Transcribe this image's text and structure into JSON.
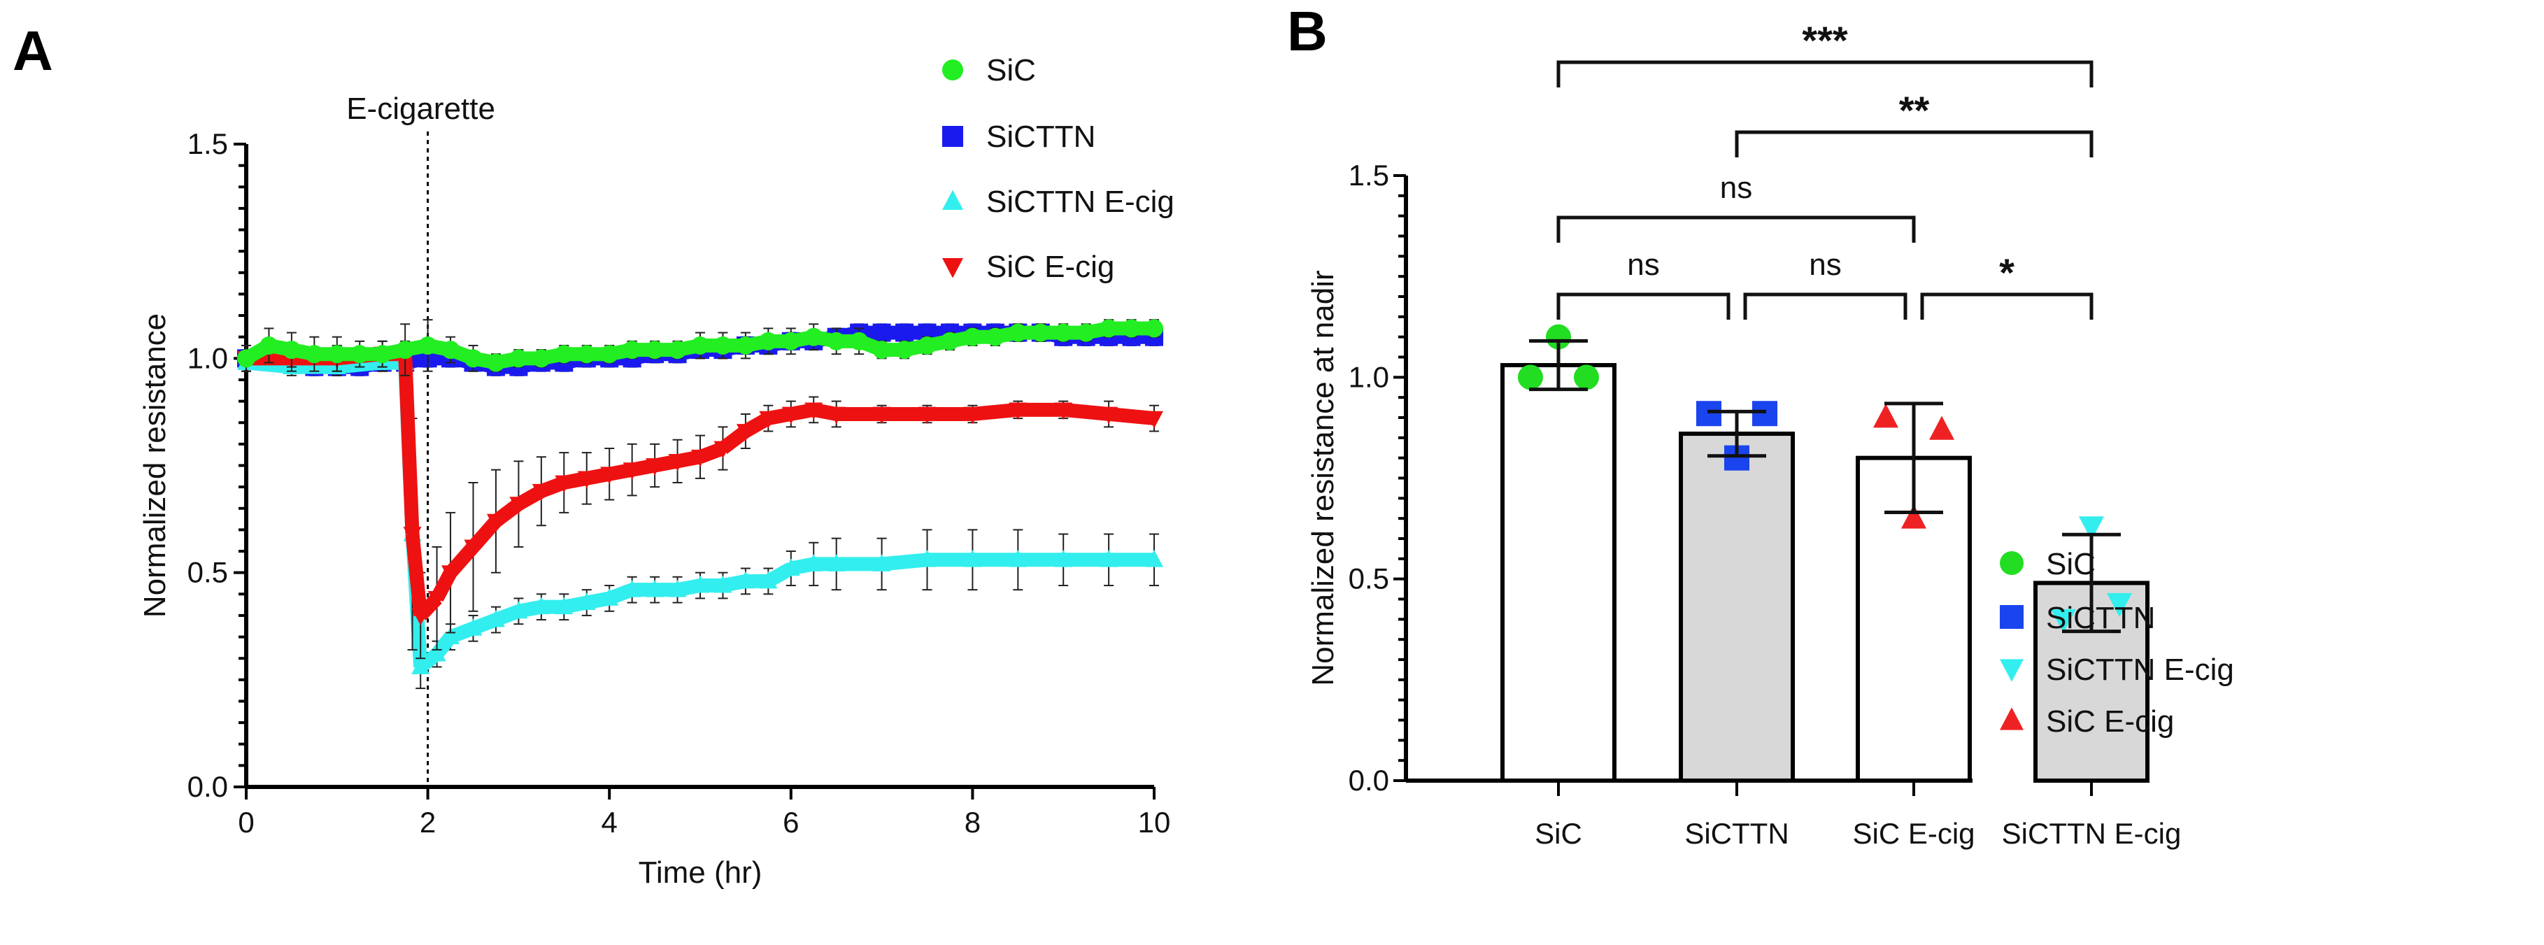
{
  "chart_data": [
    {
      "panel": "A",
      "type": "line",
      "xlabel": "Time (hr)",
      "ylabel": "Normalized resistance",
      "xlim": [
        0,
        10
      ],
      "ylim": [
        0,
        1.5
      ],
      "xticks": [
        "0",
        "2",
        "4",
        "6",
        "8",
        "10"
      ],
      "yticks": [
        "0.0",
        "0.5",
        "1.0",
        "1.5"
      ],
      "annotation": {
        "label": "E-cigarette",
        "x": 2
      },
      "legend_position": "top-right",
      "series": [
        {
          "name": "SiC",
          "marker": "circle",
          "color": "#22ee22",
          "x": [
            0,
            0.25,
            0.5,
            0.75,
            1,
            1.25,
            1.5,
            1.75,
            2,
            2.25,
            2.5,
            2.75,
            3,
            3.25,
            3.5,
            3.75,
            4,
            4.25,
            4.5,
            4.75,
            5,
            5.25,
            5.5,
            5.75,
            6,
            6.25,
            6.5,
            6.75,
            7,
            7.25,
            7.5,
            7.75,
            8,
            8.25,
            8.5,
            8.75,
            9,
            9.25,
            9.5,
            9.75,
            10
          ],
          "y": [
            1.0,
            1.03,
            1.02,
            1.01,
            1.01,
            1.01,
            1.01,
            1.02,
            1.03,
            1.02,
            1.0,
            0.99,
            1.0,
            1.0,
            1.01,
            1.01,
            1.01,
            1.02,
            1.02,
            1.02,
            1.03,
            1.03,
            1.03,
            1.04,
            1.04,
            1.05,
            1.04,
            1.04,
            1.02,
            1.02,
            1.03,
            1.04,
            1.05,
            1.05,
            1.06,
            1.06,
            1.06,
            1.06,
            1.07,
            1.07,
            1.07
          ],
          "err": [
            0.03,
            0.04,
            0.04,
            0.04,
            0.04,
            0.03,
            0.03,
            0.06,
            0.06,
            0.03,
            0.03,
            0.02,
            0.02,
            0.02,
            0.02,
            0.02,
            0.02,
            0.02,
            0.02,
            0.02,
            0.03,
            0.03,
            0.03,
            0.03,
            0.03,
            0.03,
            0.03,
            0.03,
            0.02,
            0.02,
            0.02,
            0.02,
            0.02,
            0.02,
            0.02,
            0.02,
            0.02,
            0.02,
            0.02,
            0.02,
            0.02
          ]
        },
        {
          "name": "SiCTTN",
          "marker": "square",
          "color": "#1a1aee",
          "x": [
            0,
            0.25,
            0.5,
            0.75,
            1,
            1.25,
            1.5,
            1.75,
            2,
            2.25,
            2.5,
            2.75,
            3,
            3.25,
            3.5,
            3.75,
            4,
            4.25,
            4.5,
            4.75,
            5,
            5.25,
            5.5,
            5.75,
            6,
            6.25,
            6.5,
            6.75,
            7,
            7.25,
            7.5,
            7.75,
            8,
            8.25,
            8.5,
            8.75,
            9,
            9.25,
            9.5,
            9.75,
            10
          ],
          "y": [
            1.0,
            1.0,
            0.99,
            0.98,
            0.98,
            0.98,
            0.99,
            0.99,
            1.0,
            1.0,
            0.99,
            0.98,
            0.98,
            0.99,
            0.99,
            1.0,
            1.0,
            1.0,
            1.01,
            1.01,
            1.02,
            1.02,
            1.03,
            1.03,
            1.04,
            1.04,
            1.05,
            1.06,
            1.06,
            1.06,
            1.06,
            1.06,
            1.06,
            1.06,
            1.06,
            1.06,
            1.05,
            1.05,
            1.05,
            1.05,
            1.05
          ],
          "err": [
            0.02,
            0.02,
            0.02,
            0.02,
            0.02,
            0.02,
            0.02,
            0.02,
            0.02,
            0.02,
            0.02,
            0.02,
            0.02,
            0.02,
            0.02,
            0.02,
            0.02,
            0.02,
            0.02,
            0.02,
            0.02,
            0.02,
            0.02,
            0.02,
            0.02,
            0.02,
            0.02,
            0.02,
            0.02,
            0.02,
            0.02,
            0.02,
            0.02,
            0.02,
            0.02,
            0.02,
            0.02,
            0.02,
            0.02,
            0.02,
            0.02
          ]
        },
        {
          "name": "SiCTTN E-cig",
          "marker": "triangle-up",
          "color": "#33eeee",
          "x": [
            0,
            0.5,
            1,
            1.5,
            1.75,
            1.83,
            1.92,
            2.1,
            2.25,
            2.5,
            2.75,
            3,
            3.25,
            3.5,
            3.75,
            4,
            4.25,
            4.5,
            4.75,
            5,
            5.25,
            5.5,
            5.75,
            6,
            6.25,
            6.5,
            7,
            7.5,
            8,
            8.5,
            9,
            9.5,
            10
          ],
          "y": [
            0.99,
            0.98,
            0.98,
            0.99,
            0.99,
            0.59,
            0.28,
            0.31,
            0.35,
            0.37,
            0.39,
            0.41,
            0.42,
            0.42,
            0.43,
            0.44,
            0.46,
            0.46,
            0.46,
            0.47,
            0.47,
            0.48,
            0.48,
            0.51,
            0.52,
            0.52,
            0.52,
            0.53,
            0.53,
            0.53,
            0.53,
            0.53,
            0.53
          ],
          "err": [
            0.02,
            0.02,
            0.02,
            0.02,
            0.02,
            0.02,
            0.05,
            0.03,
            0.03,
            0.03,
            0.03,
            0.03,
            0.03,
            0.03,
            0.03,
            0.03,
            0.03,
            0.03,
            0.03,
            0.03,
            0.03,
            0.03,
            0.03,
            0.04,
            0.05,
            0.06,
            0.06,
            0.07,
            0.07,
            0.07,
            0.06,
            0.06,
            0.06
          ]
        },
        {
          "name": "SiC E-cig",
          "marker": "triangle-down",
          "color": "#ee1111",
          "x": [
            0,
            0.5,
            1,
            1.5,
            1.75,
            1.83,
            1.92,
            2.1,
            2.25,
            2.5,
            2.75,
            3,
            3.25,
            3.5,
            3.75,
            4,
            4.25,
            4.5,
            4.75,
            5,
            5.25,
            5.5,
            5.75,
            6,
            6.25,
            6.5,
            7,
            7.5,
            8,
            8.5,
            9,
            9.5,
            10
          ],
          "y": [
            1.0,
            1.0,
            1.0,
            1.01,
            1.01,
            0.59,
            0.4,
            0.44,
            0.5,
            0.56,
            0.62,
            0.66,
            0.69,
            0.71,
            0.72,
            0.73,
            0.74,
            0.75,
            0.76,
            0.77,
            0.79,
            0.83,
            0.86,
            0.87,
            0.88,
            0.87,
            0.87,
            0.87,
            0.87,
            0.88,
            0.88,
            0.87,
            0.86
          ],
          "err": [
            0.03,
            0.03,
            0.03,
            0.03,
            0.03,
            0.27,
            0.1,
            0.12,
            0.14,
            0.15,
            0.12,
            0.1,
            0.08,
            0.07,
            0.06,
            0.06,
            0.06,
            0.05,
            0.05,
            0.05,
            0.05,
            0.04,
            0.03,
            0.03,
            0.03,
            0.03,
            0.02,
            0.02,
            0.02,
            0.02,
            0.02,
            0.03,
            0.03
          ]
        }
      ]
    },
    {
      "panel": "B",
      "type": "bar",
      "ylabel": "Normalized resistance at nadir",
      "ylim": [
        0,
        1.5
      ],
      "yticks": [
        "0.0",
        "0.5",
        "1.0",
        "1.5"
      ],
      "categories": [
        "SiC",
        "SiCTTN",
        "SiC E-cig",
        "SiCTTN E-cig"
      ],
      "values": [
        1.03,
        0.86,
        0.8,
        0.49
      ],
      "err": [
        0.06,
        0.055,
        0.135,
        0.12
      ],
      "bar_fill": [
        "#ffffff",
        "#d8d8d8",
        "#ffffff",
        "#d8d8d8"
      ],
      "points": [
        [
          1.1,
          1.0,
          1.0
        ],
        [
          0.91,
          0.91,
          0.8
        ],
        [
          0.9,
          0.87,
          0.65
        ],
        [
          0.63,
          0.44,
          0.4
        ]
      ],
      "point_markers": [
        "circle",
        "square",
        "triangle-up",
        "triangle-down"
      ],
      "point_colors": [
        "#22dd22",
        "#1a44ee",
        "#ee2222",
        "#33eeee"
      ],
      "legend_position": "right",
      "legend": [
        {
          "name": "SiC",
          "marker": "circle",
          "color": "#22dd22"
        },
        {
          "name": "SiCTTN",
          "marker": "square",
          "color": "#1a44ee"
        },
        {
          "name": "SiCTTN E-cig",
          "marker": "triangle-down",
          "color": "#33eeee"
        },
        {
          "name": "SiC E-cig",
          "marker": "triangle-up",
          "color": "#ee2222"
        }
      ],
      "comparisons": [
        {
          "from": 0,
          "to": 3,
          "label": "***"
        },
        {
          "from": 1,
          "to": 3,
          "label": "**"
        },
        {
          "from": 0,
          "to": 2,
          "label": "ns"
        },
        {
          "from": 0,
          "to": 1,
          "label": "ns"
        },
        {
          "from": 1,
          "to": 2,
          "label": "ns"
        },
        {
          "from": 2,
          "to": 3,
          "label": "*"
        }
      ]
    }
  ]
}
